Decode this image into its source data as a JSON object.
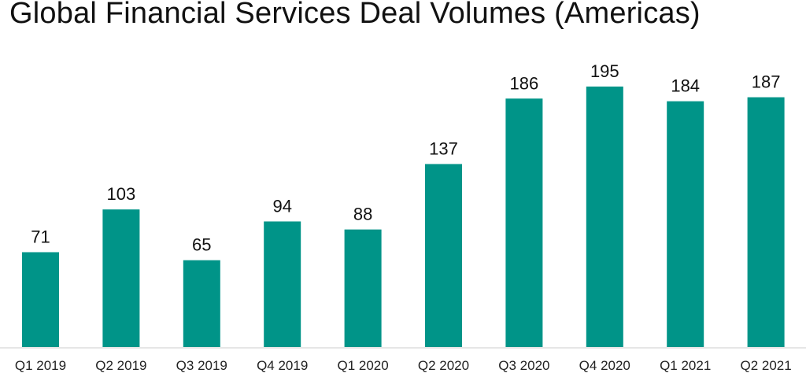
{
  "chart_data": {
    "type": "bar",
    "title": "Global Financial Services Deal Volumes (Americas)",
    "xlabel": "",
    "ylabel": "",
    "categories": [
      "Q1 2019",
      "Q2 2019",
      "Q3 2019",
      "Q4 2019",
      "Q1 2020",
      "Q2 2020",
      "Q3 2020",
      "Q4 2020",
      "Q1 2021",
      "Q2 2021"
    ],
    "values": [
      71,
      103,
      65,
      94,
      88,
      137,
      186,
      195,
      184,
      187
    ],
    "ylim": [
      0,
      195
    ],
    "grid": false,
    "legend": "none",
    "data_labels": true,
    "bar_color": "#009488",
    "axis_color": "#e6e6e6"
  }
}
